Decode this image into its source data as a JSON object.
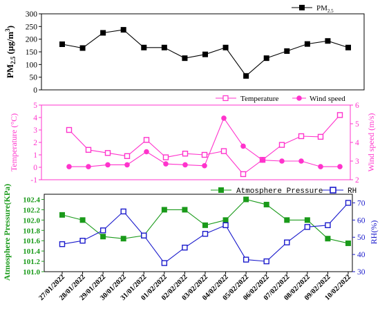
{
  "chart_data": {
    "categories": [
      "27/01/2022",
      "28/01/2022",
      "29/01/2022",
      "30/01/2022",
      "31/01/2022",
      "01/02/2022",
      "02/02/2022",
      "03/02/2022",
      "04/02/2022",
      "05/02/2022",
      "06/02/2022",
      "07/02/2022",
      "08/02/2022",
      "09/02/2022",
      "10/02/2022"
    ],
    "panels": [
      {
        "type": "line",
        "y_label": "PM2.5 (μg/m³)",
        "y_label_main": "PM",
        "y_label_sub": "2.5",
        "y_label_rest": " (μg/m",
        "y_label_sup": "3",
        "y_label_end": ")",
        "ylim": [
          0,
          300
        ],
        "yticks": [
          "0",
          "50",
          "100",
          "150",
          "200",
          "250",
          "300"
        ],
        "legend_position": "top-right",
        "series": [
          {
            "name": "PM2.5",
            "name_main": "PM",
            "name_sub": "2.5",
            "color": "#000000",
            "marker": "filled-square",
            "values": [
              180,
              165,
              225,
              237,
              167,
              167,
              125,
              140,
              167,
              55,
              125,
              153,
              181,
              193,
              167
            ]
          }
        ]
      },
      {
        "type": "line",
        "y_label": "Temperature (°C)",
        "y2_label": "Wind speed (m/s)",
        "ylim": [
          -1,
          5
        ],
        "y2lim": [
          2,
          6
        ],
        "yticks": [
          "-1",
          "0",
          "1",
          "2",
          "3",
          "4",
          "5"
        ],
        "y2ticks": [
          "2",
          "3",
          "4",
          "5",
          "6"
        ],
        "legend_position": "top-right",
        "series": [
          {
            "name": "Temperature",
            "axis": "left",
            "color": "#ff33cc",
            "marker": "open-square",
            "values": [
              3.0,
              1.4,
              1.15,
              0.9,
              2.2,
              0.8,
              1.1,
              1.0,
              1.3,
              -0.55,
              0.6,
              1.8,
              2.5,
              2.45,
              4.2
            ]
          },
          {
            "name": "Wind speed",
            "axis": "right",
            "color": "#ff33cc",
            "marker": "filled-circle",
            "values": [
              2.7,
              2.7,
              2.8,
              2.8,
              3.5,
              2.85,
              2.8,
              2.75,
              5.3,
              3.8,
              3.05,
              3.0,
              3.0,
              2.7,
              2.7
            ]
          }
        ]
      },
      {
        "type": "line",
        "y_label": "Atmosphere Pressure(KPa)",
        "y2_label": "RH(%)",
        "ylim": [
          101.0,
          102.5
        ],
        "y2lim": [
          30,
          75
        ],
        "yticks": [
          "101.0",
          "101.2",
          "101.4",
          "101.6",
          "101.8",
          "102.0",
          "102.2",
          "102.4"
        ],
        "y2ticks": [
          "30",
          "40",
          "50",
          "60",
          "70"
        ],
        "legend_position": "top-right",
        "series": [
          {
            "name": "Atmosphere Pressure",
            "axis": "left",
            "color": "#1a9a1a",
            "marker": "filled-square",
            "values": [
              102.1,
              102.0,
              101.68,
              101.64,
              101.7,
              102.2,
              102.2,
              101.9,
              102.0,
              102.4,
              102.3,
              102.0,
              102.0,
              101.64,
              101.55
            ]
          },
          {
            "name": "RH",
            "axis": "right",
            "color": "#1a1acc",
            "marker": "open-square",
            "values": [
              46,
              48,
              54,
              65,
              51,
              35,
              44,
              52,
              57,
              37,
              36,
              47,
              56,
              57,
              70
            ]
          }
        ]
      }
    ]
  }
}
